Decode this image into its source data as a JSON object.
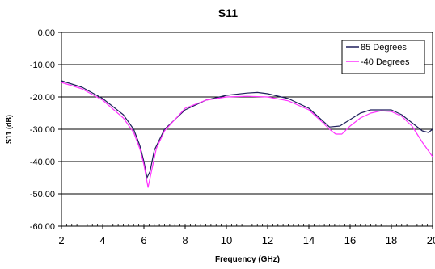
{
  "chart_data": {
    "type": "line",
    "title": "S11",
    "xlabel": "Frequency (GHz)",
    "ylabel": "S11 (dB)",
    "xlim": [
      2,
      20
    ],
    "ylim": [
      -60,
      0
    ],
    "x_ticks": [
      "2",
      "4",
      "6",
      "8",
      "10",
      "12",
      "14",
      "16",
      "18",
      "20"
    ],
    "y_ticks": [
      "0.00",
      "-10.00",
      "-20.00",
      "-30.00",
      "-40.00",
      "-50.00",
      "-60.00"
    ],
    "grid": "horizontal",
    "legend_position": "top-right",
    "series": [
      {
        "name": "85 Degrees",
        "color": "#1f1f5c",
        "points": [
          [
            2,
            -15
          ],
          [
            3,
            -17
          ],
          [
            4,
            -20.5
          ],
          [
            5,
            -25.5
          ],
          [
            5.5,
            -30
          ],
          [
            5.8,
            -35
          ],
          [
            6.0,
            -40
          ],
          [
            6.15,
            -45
          ],
          [
            6.3,
            -43
          ],
          [
            6.5,
            -36.5
          ],
          [
            7,
            -30
          ],
          [
            8,
            -24
          ],
          [
            9,
            -21
          ],
          [
            10,
            -19.5
          ],
          [
            11,
            -18.8
          ],
          [
            11.5,
            -18.6
          ],
          [
            12,
            -19
          ],
          [
            13,
            -20.5
          ],
          [
            14,
            -23.5
          ],
          [
            14.6,
            -27
          ],
          [
            15,
            -29.3
          ],
          [
            15.5,
            -29
          ],
          [
            16,
            -27
          ],
          [
            16.5,
            -25
          ],
          [
            17,
            -24
          ],
          [
            18,
            -24
          ],
          [
            18.5,
            -25.5
          ],
          [
            19,
            -28
          ],
          [
            19.5,
            -30.5
          ],
          [
            19.8,
            -31
          ],
          [
            20,
            -30
          ]
        ]
      },
      {
        "name": "-40 Degrees",
        "color": "#ff33ff",
        "points": [
          [
            2,
            -15.5
          ],
          [
            3,
            -17.5
          ],
          [
            4,
            -21
          ],
          [
            5,
            -26.5
          ],
          [
            5.5,
            -31
          ],
          [
            5.8,
            -36
          ],
          [
            6.0,
            -41
          ],
          [
            6.2,
            -48
          ],
          [
            6.4,
            -42
          ],
          [
            6.6,
            -36
          ],
          [
            7,
            -30.5
          ],
          [
            8,
            -23.5
          ],
          [
            9,
            -21
          ],
          [
            10,
            -20
          ],
          [
            11,
            -19.8
          ],
          [
            12,
            -20
          ],
          [
            13,
            -21.2
          ],
          [
            14,
            -24
          ],
          [
            14.6,
            -27.5
          ],
          [
            15,
            -30
          ],
          [
            15.3,
            -31.5
          ],
          [
            15.6,
            -31.5
          ],
          [
            16,
            -29
          ],
          [
            16.5,
            -26.5
          ],
          [
            17,
            -25
          ],
          [
            17.5,
            -24.3
          ],
          [
            18,
            -24.5
          ],
          [
            18.5,
            -26
          ],
          [
            19,
            -29
          ],
          [
            19.5,
            -34
          ],
          [
            20,
            -38.5
          ]
        ]
      }
    ]
  }
}
